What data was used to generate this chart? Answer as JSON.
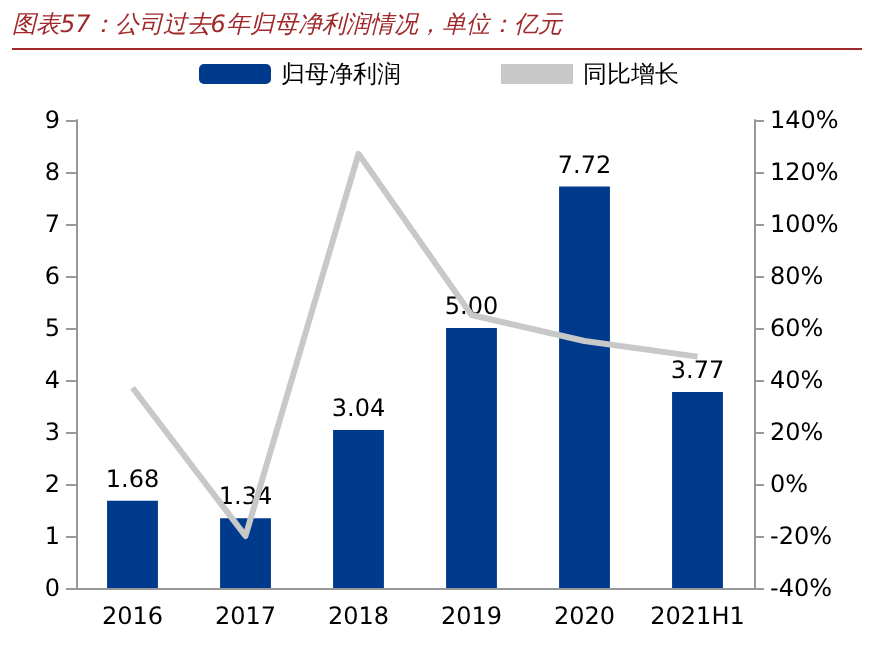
{
  "chart_data": {
    "type": "bar",
    "title": "图表57：公司过去6年归母净利润情况，单位：亿元",
    "categories": [
      "2016",
      "2017",
      "2018",
      "2019",
      "2020",
      "2021H1"
    ],
    "series": [
      {
        "name": "归母净利润",
        "color": "#003a8c",
        "values": [
          1.68,
          1.34,
          3.04,
          5.0,
          7.72,
          3.77
        ],
        "value_labels": [
          "1.68",
          "1.34",
          "3.04",
          "5.00",
          "7.72",
          "3.77"
        ]
      },
      {
        "name": "同比增长",
        "type": "line",
        "axis": "y2",
        "color": "#c8c8c8",
        "marker": "none",
        "values": [
          37,
          -20,
          127,
          65,
          55,
          49
        ]
      }
    ],
    "ylim": [
      0,
      9
    ],
    "yticks": [
      0,
      1,
      2,
      3,
      4,
      5,
      6,
      7,
      8,
      9
    ],
    "y2lim": [
      -40,
      140
    ],
    "y2ticks": [
      {
        "value": -40,
        "label": "-40%"
      },
      {
        "value": -20,
        "label": "-20%"
      },
      {
        "value": 0,
        "label": "0%"
      },
      {
        "value": 20,
        "label": "20%"
      },
      {
        "value": 40,
        "label": "40%"
      },
      {
        "value": 60,
        "label": "60%"
      },
      {
        "value": 80,
        "label": "80%"
      },
      {
        "value": 100,
        "label": "100%"
      },
      {
        "value": 120,
        "label": "120%"
      },
      {
        "value": 140,
        "label": "140%"
      }
    ],
    "grid": false,
    "legend": "top"
  }
}
